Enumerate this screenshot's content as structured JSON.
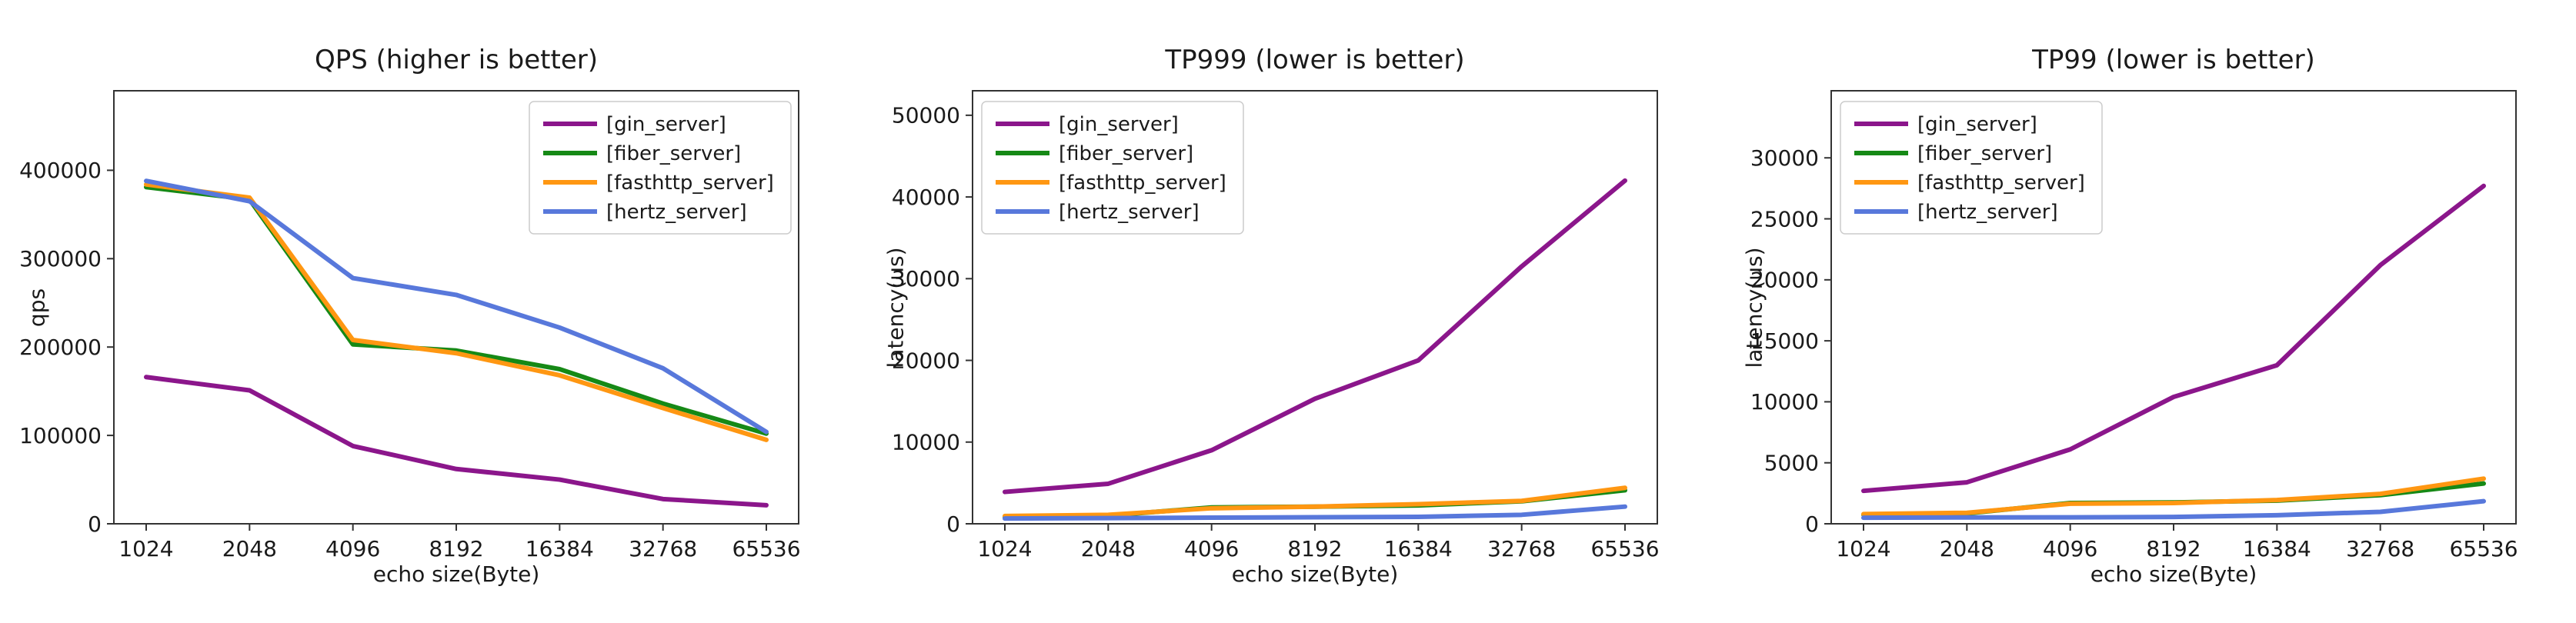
{
  "figure": {
    "background_color": "#ffffff",
    "text_color": "#1a1a1a",
    "axis_color": "#333333"
  },
  "chart_data": [
    {
      "type": "line",
      "title": "QPS (higher is better)",
      "xlabel": "echo size(Byte)",
      "ylabel": "qps",
      "categories": [
        "1024",
        "2048",
        "4096",
        "8192",
        "16384",
        "32768",
        "65536"
      ],
      "y_ticks": [
        0,
        100000,
        200000,
        300000,
        400000
      ],
      "ylim": [
        0,
        490000
      ],
      "grid": false,
      "legend_position": "upper right",
      "series": [
        {
          "name": "[gin_server]",
          "color": "#8B168B",
          "values": [
            166000,
            151000,
            88000,
            62000,
            50000,
            28000,
            21000
          ]
        },
        {
          "name": "[fiber_server]",
          "color": "#168916",
          "values": [
            381000,
            367000,
            203000,
            196000,
            175000,
            136000,
            102000
          ]
        },
        {
          "name": "[fasthttp_server]",
          "color": "#FF9712",
          "values": [
            384000,
            369000,
            208000,
            193000,
            168000,
            131000,
            95000
          ]
        },
        {
          "name": "[hertz_server]",
          "color": "#5878DB",
          "values": [
            388000,
            365000,
            278000,
            259000,
            222000,
            176000,
            104000
          ]
        }
      ]
    },
    {
      "type": "line",
      "title": "TP999 (lower is better)",
      "xlabel": "echo size(Byte)",
      "ylabel": "latency(us)",
      "categories": [
        "1024",
        "2048",
        "4096",
        "8192",
        "16384",
        "32768",
        "65536"
      ],
      "y_ticks": [
        0,
        10000,
        20000,
        30000,
        40000,
        50000
      ],
      "ylim": [
        0,
        53000
      ],
      "grid": false,
      "legend_position": "upper left",
      "series": [
        {
          "name": "[gin_server]",
          "color": "#8B168B",
          "values": [
            3900,
            4900,
            9000,
            15300,
            20000,
            31500,
            42000
          ]
        },
        {
          "name": "[fiber_server]",
          "color": "#168916",
          "values": [
            850,
            1000,
            2000,
            2100,
            2250,
            2750,
            4100
          ]
        },
        {
          "name": "[fasthttp_server]",
          "color": "#FF9712",
          "values": [
            950,
            1100,
            1900,
            2100,
            2400,
            2800,
            4400
          ]
        },
        {
          "name": "[hertz_server]",
          "color": "#5878DB",
          "values": [
            650,
            700,
            750,
            800,
            850,
            1100,
            2100
          ]
        }
      ]
    },
    {
      "type": "line",
      "title": "TP99 (lower is better)",
      "xlabel": "echo size(Byte)",
      "ylabel": "latency(us)",
      "categories": [
        "1024",
        "2048",
        "4096",
        "8192",
        "16384",
        "32768",
        "65536"
      ],
      "y_ticks": [
        0,
        5000,
        10000,
        15000,
        20000,
        25000,
        30000
      ],
      "ylim": [
        0,
        35500
      ],
      "grid": false,
      "legend_position": "upper left",
      "series": [
        {
          "name": "[gin_server]",
          "color": "#8B168B",
          "values": [
            2700,
            3400,
            6100,
            10400,
            13000,
            21200,
            27700
          ]
        },
        {
          "name": "[fiber_server]",
          "color": "#168916",
          "values": [
            750,
            850,
            1700,
            1750,
            1900,
            2350,
            3300
          ]
        },
        {
          "name": "[fasthttp_server]",
          "color": "#FF9712",
          "values": [
            800,
            900,
            1650,
            1700,
            1950,
            2450,
            3700
          ]
        },
        {
          "name": "[hertz_server]",
          "color": "#5878DB",
          "values": [
            500,
            520,
            530,
            560,
            700,
            980,
            1850
          ]
        }
      ]
    }
  ]
}
